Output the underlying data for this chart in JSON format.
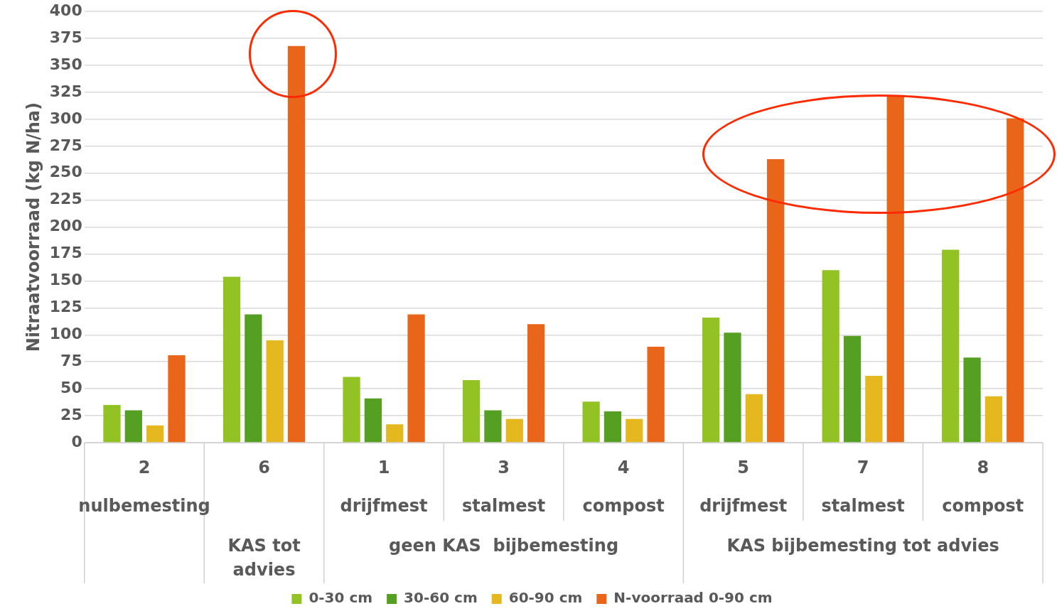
{
  "chart_data": {
    "type": "bar",
    "ylabel": "Nitraatvoorraad (kg N/ha)",
    "categories": [
      "2\nnulbemesting",
      "6",
      "1\ndrijfmest",
      "3\nstalmest",
      "4\ncompost",
      "5\ndrijfmest",
      "7\nstalmest",
      "8\ncompost"
    ],
    "series": [
      {
        "name": "0-30 cm",
        "color": "#93c225",
        "values": [
          35,
          154,
          61,
          58,
          38,
          116,
          160,
          179
        ]
      },
      {
        "name": "30-60 cm",
        "color": "#55a022",
        "values": [
          30,
          119,
          41,
          30,
          29,
          102,
          99,
          79
        ]
      },
      {
        "name": "60-90 cm",
        "color": "#e6b820",
        "values": [
          16,
          95,
          17,
          22,
          22,
          45,
          62,
          43
        ]
      },
      {
        "name": "N-voorraad 0-90 cm",
        "color": "#e8651a",
        "values": [
          81,
          368,
          119,
          110,
          89,
          263,
          321,
          301
        ]
      }
    ],
    "annotations": [
      "KAS tot advies",
      "geen KAS  bijbemesting",
      "KAS bijbemesting tot advies"
    ],
    "ylim": [
      0,
      400
    ],
    "yticks": [
      0,
      25,
      50,
      75,
      100,
      125,
      150,
      175,
      200,
      225,
      250,
      275,
      300,
      325,
      350,
      375,
      400
    ],
    "grid": "y",
    "legend": "bottom"
  }
}
